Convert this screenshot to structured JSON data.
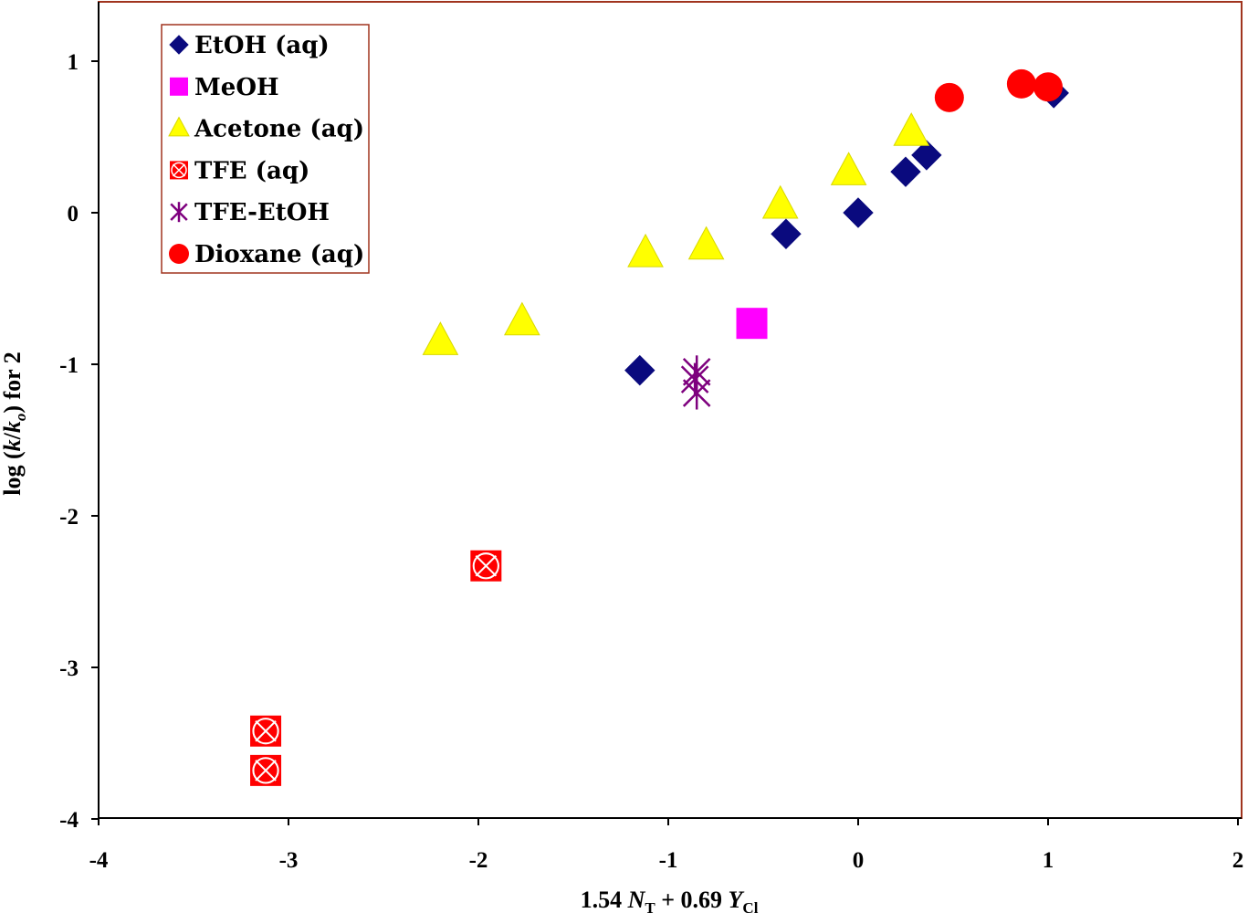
{
  "chart_data": {
    "type": "scatter",
    "title": "",
    "xlabel": {
      "prefix": "1.54 ",
      "var1": "N",
      "sub1": "T",
      "mid": " + 0.69 ",
      "var2": "Y",
      "sub2": "Cl"
    },
    "ylabel": {
      "prefix": "log (",
      "var1": "k",
      "slash": "/",
      "var2": "k",
      "sub2": "o",
      "suffix": ") for 2"
    },
    "xlim": [
      -4,
      2
    ],
    "ylim": [
      -4,
      1.4
    ],
    "x_ticks": [
      -4,
      -3,
      -2,
      -1,
      0,
      1,
      2
    ],
    "x_tick_labels": [
      "-4",
      "-3",
      "-2",
      "-1",
      "0",
      "1",
      "2"
    ],
    "y_ticks": [
      -4,
      -3,
      -2,
      -1,
      0,
      1
    ],
    "y_tick_labels": [
      "-4",
      "-3",
      "-2",
      "-1",
      "0",
      "1"
    ],
    "legend_position": "top-left",
    "colors": {
      "frame": "#a0341e",
      "axis": "#000000"
    },
    "series": [
      {
        "name": "EtOH (aq)",
        "marker": "diamond",
        "color": "#0a0a7e",
        "points": [
          [
            -1.15,
            -1.04
          ],
          [
            -0.38,
            -0.14
          ],
          [
            0.0,
            0.0
          ],
          [
            0.25,
            0.27
          ],
          [
            0.36,
            0.38
          ],
          [
            1.03,
            0.79
          ]
        ]
      },
      {
        "name": "MeOH",
        "marker": "square",
        "color": "#ff00ff",
        "points": [
          [
            -0.56,
            -0.73
          ]
        ]
      },
      {
        "name": "Acetone (aq)",
        "marker": "triangle",
        "color": "#ffff00",
        "points": [
          [
            -2.2,
            -0.85
          ],
          [
            -1.77,
            -0.72
          ],
          [
            -1.12,
            -0.27
          ],
          [
            -0.8,
            -0.22
          ],
          [
            -0.41,
            0.05
          ],
          [
            -0.05,
            0.27
          ],
          [
            0.28,
            0.53
          ]
        ]
      },
      {
        "name": "TFE (aq)",
        "marker": "xsquare",
        "color": "#ff0000",
        "points": [
          [
            -1.96,
            -2.33
          ],
          [
            -3.12,
            -3.42
          ],
          [
            -3.12,
            -3.68
          ]
        ]
      },
      {
        "name": "TFE-EtOH",
        "marker": "asterisk",
        "color": "#7e007e",
        "points": [
          [
            -0.85,
            -1.05
          ],
          [
            -0.86,
            -1.1
          ],
          [
            -0.85,
            -1.19
          ]
        ]
      },
      {
        "name": "Dioxane (aq)",
        "marker": "circle",
        "color": "#ff0000",
        "points": [
          [
            0.48,
            0.76
          ],
          [
            0.86,
            0.85
          ],
          [
            1.0,
            0.83
          ]
        ]
      }
    ]
  }
}
